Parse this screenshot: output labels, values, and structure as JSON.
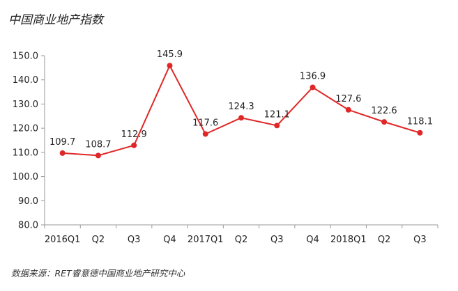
{
  "chart_data": {
    "type": "line",
    "title": "中国商业地产指数",
    "categories": [
      "2016Q1",
      "Q2",
      "Q3",
      "Q4",
      "2017Q1",
      "Q2",
      "Q3",
      "Q4",
      "2018Q1",
      "Q2",
      "Q3"
    ],
    "series": [
      {
        "values": [
          109.7,
          108.7,
          112.9,
          145.9,
          117.6,
          124.3,
          121.1,
          136.9,
          127.6,
          122.6,
          118.1
        ]
      }
    ],
    "value_labels": [
      "109.7",
      "108.7",
      "112.9",
      "145.9",
      "117.6",
      "124.3",
      "121.1",
      "136.9",
      "127.6",
      "122.6",
      "118.1"
    ],
    "ylim": [
      80,
      150
    ],
    "yticks": [
      "80.0",
      "90.0",
      "100.0",
      "110.0",
      "120.0",
      "130.0",
      "140.0",
      "150.0"
    ],
    "grid": false,
    "colors": {
      "line": "#e02727",
      "marker": "#e02727",
      "axis": "#999999"
    }
  },
  "source_note": "数据来源：RET睿意德中国商业地产研究中心"
}
